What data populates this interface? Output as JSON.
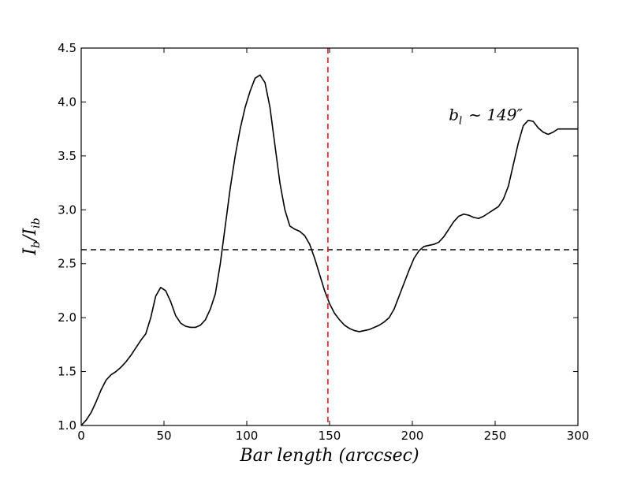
{
  "chart_data": {
    "type": "line",
    "xlabel": "Bar length (arccsec)",
    "ylabel": "I_b/I_ib",
    "xlim": [
      0,
      300
    ],
    "ylim": [
      1.0,
      4.5
    ],
    "xticks": [
      0,
      50,
      100,
      150,
      200,
      250,
      300
    ],
    "xtick_labels": [
      "0",
      "50",
      "100",
      "150",
      "200",
      "250",
      "300"
    ],
    "yticks": [
      1.0,
      1.5,
      2.0,
      2.5,
      3.0,
      3.5,
      4.0,
      4.5
    ],
    "ytick_labels": [
      "1.0",
      "1.5",
      "2.0",
      "2.5",
      "3.0",
      "3.5",
      "4.0",
      "4.5"
    ],
    "grid": false,
    "series": [
      {
        "color": "#000000",
        "x": [
          0,
          3,
          6,
          9,
          12,
          15,
          18,
          21,
          24,
          27,
          30,
          33,
          36,
          39,
          42,
          45,
          48,
          51,
          54,
          57,
          60,
          63,
          66,
          69,
          72,
          75,
          78,
          81,
          84,
          87,
          90,
          93,
          96,
          99,
          102,
          105,
          108,
          111,
          114,
          117,
          120,
          123,
          126,
          129,
          132,
          135,
          138,
          141,
          144,
          147,
          150,
          153,
          156,
          159,
          162,
          165,
          168,
          171,
          174,
          177,
          180,
          183,
          186,
          189,
          192,
          195,
          198,
          201,
          204,
          207,
          210,
          213,
          216,
          219,
          222,
          225,
          228,
          231,
          234,
          237,
          240,
          243,
          246,
          249,
          252,
          255,
          258,
          261,
          264,
          267,
          270,
          273,
          276,
          279,
          282,
          285,
          288,
          291,
          294,
          297,
          300
        ],
        "y": [
          1.0,
          1.05,
          1.12,
          1.22,
          1.33,
          1.42,
          1.47,
          1.5,
          1.54,
          1.59,
          1.65,
          1.72,
          1.79,
          1.85,
          2.0,
          2.2,
          2.28,
          2.25,
          2.15,
          2.02,
          1.95,
          1.92,
          1.91,
          1.91,
          1.93,
          1.98,
          2.08,
          2.22,
          2.5,
          2.85,
          3.2,
          3.5,
          3.75,
          3.95,
          4.1,
          4.22,
          4.25,
          4.18,
          3.95,
          3.6,
          3.25,
          3.0,
          2.85,
          2.82,
          2.8,
          2.76,
          2.68,
          2.55,
          2.4,
          2.25,
          2.13,
          2.04,
          1.98,
          1.93,
          1.9,
          1.88,
          1.87,
          1.88,
          1.89,
          1.91,
          1.93,
          1.96,
          2.0,
          2.08,
          2.2,
          2.32,
          2.44,
          2.55,
          2.62,
          2.66,
          2.67,
          2.68,
          2.7,
          2.75,
          2.82,
          2.89,
          2.94,
          2.96,
          2.95,
          2.93,
          2.92,
          2.94,
          2.97,
          3.0,
          3.03,
          3.1,
          3.22,
          3.42,
          3.62,
          3.78,
          3.83,
          3.82,
          3.76,
          3.72,
          3.7,
          3.72,
          3.75,
          3.75,
          3.75,
          3.75,
          3.75
        ]
      }
    ],
    "hlines": [
      {
        "y": 2.63,
        "color": "#000000",
        "style": "dashed"
      }
    ],
    "vlines": [
      {
        "x": 149,
        "color": "#e8141b",
        "style": "dashed"
      }
    ],
    "annotation": {
      "text": "b_l ~ 149″",
      "x": 222,
      "y": 3.83
    }
  }
}
